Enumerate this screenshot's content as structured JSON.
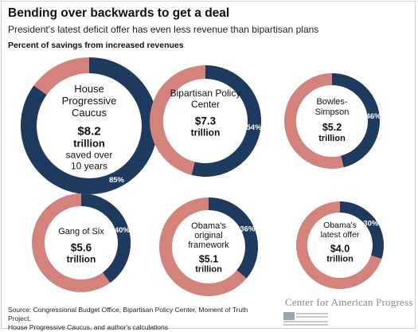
{
  "header": {
    "title": "Bending over backwards to get a deal",
    "subtitle": "President's latest deficit offer has even less revenue than bipartisan plans",
    "section_label": "Percent of savings from increased revenues"
  },
  "colors": {
    "revenue": "#1f3a5f",
    "other": "#d4837c",
    "hole": "#ffffff"
  },
  "chart_data": {
    "type": "pie",
    "title": "Bending over backwards to get a deal",
    "subtitle": "President's latest deficit offer has even less revenue than bipartisan plans",
    "ylabel": "Percent of savings from increased revenues",
    "items": [
      {
        "lines": [
          "House",
          "Progressive",
          "Caucus"
        ],
        "amount": "$8.2",
        "unit": "trillion",
        "note": [
          "saved over",
          "10 years"
        ],
        "revenue_pct": 85,
        "pct_label": "85%"
      },
      {
        "lines": [
          "Bipartisan Policy",
          "Center"
        ],
        "amount": "$7.3",
        "unit": "trillion",
        "note": [],
        "revenue_pct": 54,
        "pct_label": "54%"
      },
      {
        "lines": [
          "Bowles-",
          "Simpson"
        ],
        "amount": "$5.2",
        "unit": "trillion",
        "note": [],
        "revenue_pct": 46,
        "pct_label": "46%"
      },
      {
        "lines": [
          "Gang of Six"
        ],
        "amount": "$5.6",
        "unit": "trillion",
        "note": [],
        "revenue_pct": 40,
        "pct_label": "40%"
      },
      {
        "lines": [
          "Obama's",
          "original",
          "framework"
        ],
        "amount": "$5.1",
        "unit": "trillion",
        "note": [],
        "revenue_pct": 36,
        "pct_label": "36%"
      },
      {
        "lines": [
          "Obama's",
          "latest offer"
        ],
        "amount": "$4.0",
        "unit": "trillion",
        "note": [],
        "revenue_pct": 30,
        "pct_label": "30%"
      }
    ]
  },
  "footer": {
    "source_line1": "Source: Congressional Budget Office, Bipartisan Policy Center, Moment of Truth Project,",
    "source_line2": "House Progressive Caucus, and author's calculations",
    "logo_text": "Center for American Progress"
  }
}
